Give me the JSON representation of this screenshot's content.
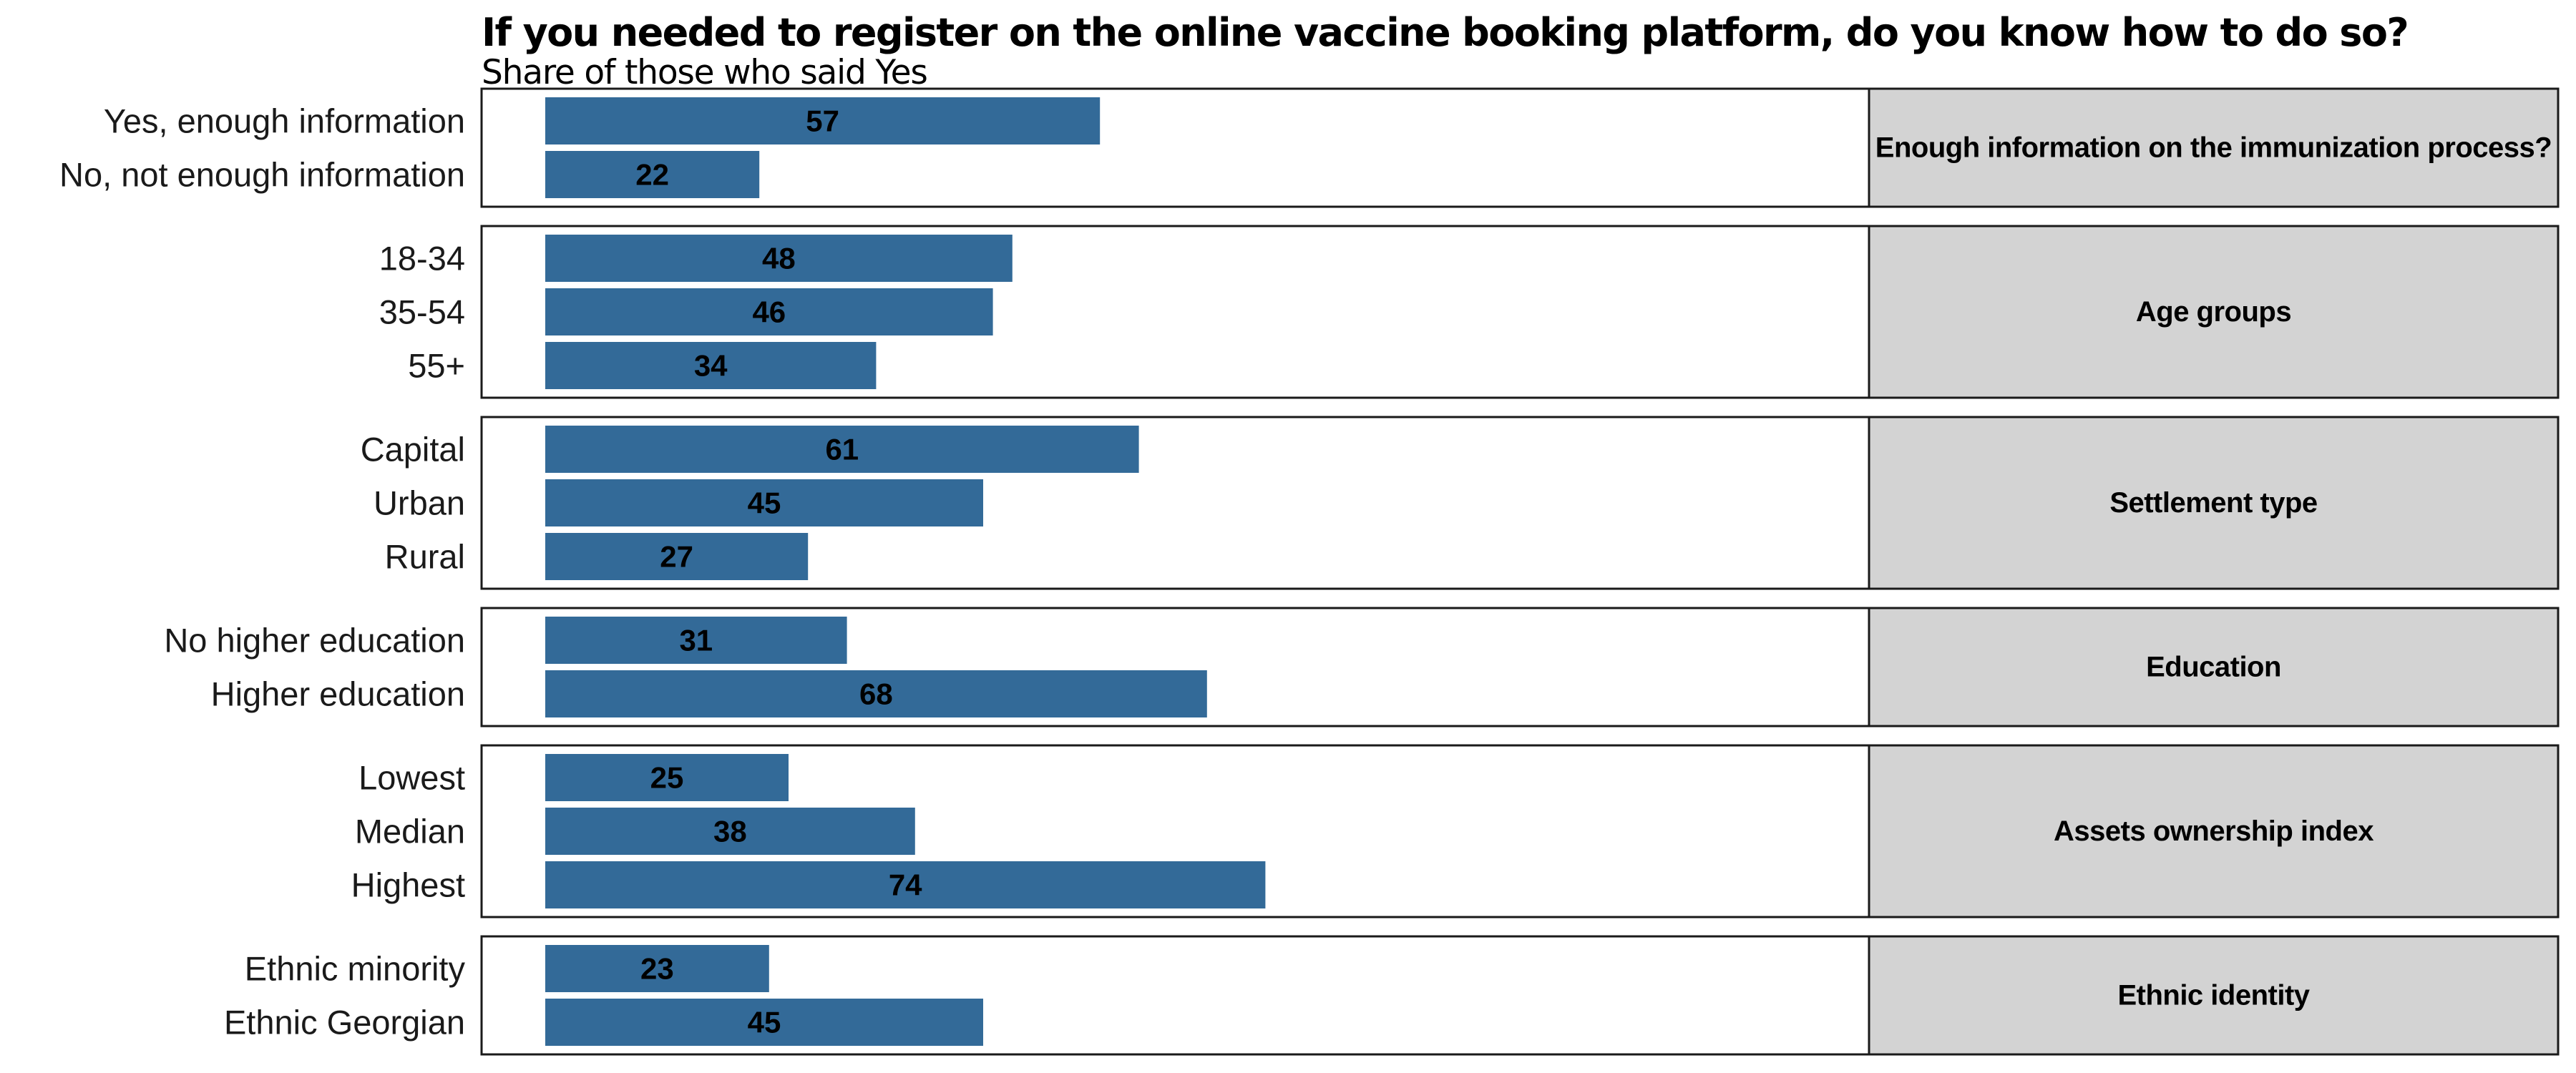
{
  "chart_data": {
    "type": "bar",
    "orientation": "horizontal",
    "title": "If you needed to register on the online vaccine booking platform, do you know how to do so?",
    "subtitle": "Share of those who said Yes",
    "xlim": [
      0,
      100
    ],
    "bar_color": "#336A98",
    "strip_color": "#D3D3D3",
    "panels": [
      {
        "strip_label": "Enough information on the immunization process?",
        "categories": [
          "Yes, enough information",
          "No, not enough information"
        ],
        "values": [
          57,
          22
        ]
      },
      {
        "strip_label": "Age groups",
        "categories": [
          "18-34",
          "35-54",
          "55+"
        ],
        "values": [
          48,
          46,
          34
        ]
      },
      {
        "strip_label": "Settlement type",
        "categories": [
          "Capital",
          "Urban",
          "Rural"
        ],
        "values": [
          61,
          45,
          27
        ]
      },
      {
        "strip_label": "Education",
        "categories": [
          "No higher education",
          "Higher education"
        ],
        "values": [
          31,
          68
        ]
      },
      {
        "strip_label": "Assets ownership index",
        "categories": [
          "Lowest",
          "Median",
          "Highest"
        ],
        "values": [
          25,
          38,
          74
        ]
      },
      {
        "strip_label": "Ethnic identity",
        "categories": [
          "Ethnic minority",
          "Ethnic Georgian"
        ],
        "values": [
          23,
          45
        ]
      }
    ]
  }
}
